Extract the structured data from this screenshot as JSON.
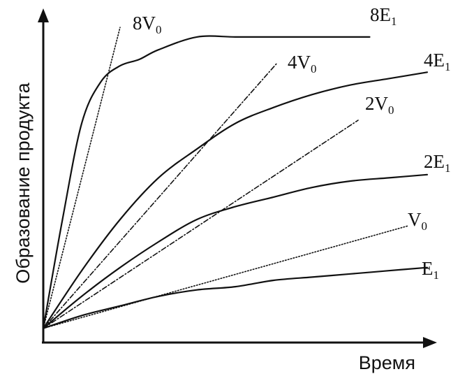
{
  "chart_data": {
    "type": "line",
    "xlabel": "Время",
    "ylabel": "Образование продукта",
    "xlim": [
      0,
      100
    ],
    "ylim": [
      0,
      100
    ],
    "grid": false,
    "legend": "inline labels at line ends",
    "series": [
      {
        "name": "8V₀",
        "label_main": "8V",
        "label_sub": "0",
        "style": "dotted",
        "x": [
          0,
          20
        ],
        "y": [
          4,
          98
        ]
      },
      {
        "name": "4V₀",
        "label_main": "4V",
        "label_sub": "0",
        "style": "dashdot",
        "x": [
          0,
          61
        ],
        "y": [
          4,
          87
        ]
      },
      {
        "name": "2V₀",
        "label_main": "2V",
        "label_sub": "0",
        "style": "dashdot",
        "x": [
          0,
          82
        ],
        "y": [
          4,
          69
        ]
      },
      {
        "name": "V₀",
        "label_main": "V",
        "label_sub": "0",
        "style": "dotted",
        "x": [
          0,
          95
        ],
        "y": [
          4,
          36
        ]
      },
      {
        "name": "8E₁",
        "label_main": "8E",
        "label_sub": "1",
        "style": "solid",
        "x": [
          0,
          5,
          10,
          15,
          20,
          25,
          30,
          40,
          50,
          60,
          70,
          85
        ],
        "y": [
          4,
          38,
          68,
          81,
          86,
          88,
          91,
          95,
          95,
          95,
          95,
          95
        ]
      },
      {
        "name": "4E₁",
        "label_main": "4E",
        "label_sub": "1",
        "style": "solid",
        "x": [
          0,
          10,
          20,
          30,
          40,
          50,
          60,
          70,
          80,
          90,
          100
        ],
        "y": [
          4,
          22,
          38,
          51,
          60,
          68,
          73,
          77,
          80,
          82,
          84
        ]
      },
      {
        "name": "2E₁",
        "label_main": "2E",
        "label_sub": "1",
        "style": "solid",
        "x": [
          0,
          10,
          20,
          30,
          40,
          50,
          60,
          70,
          80,
          90,
          100
        ],
        "y": [
          4,
          14,
          23,
          31,
          38,
          42,
          45,
          48,
          50,
          51,
          52
        ]
      },
      {
        "name": "E₁",
        "label_main": "E",
        "label_sub": "1",
        "style": "solid",
        "x": [
          0,
          10,
          20,
          30,
          40,
          50,
          60,
          70,
          80,
          90,
          100
        ],
        "y": [
          4,
          8,
          11,
          14,
          16,
          17,
          19,
          20,
          21,
          22,
          23
        ]
      }
    ]
  }
}
